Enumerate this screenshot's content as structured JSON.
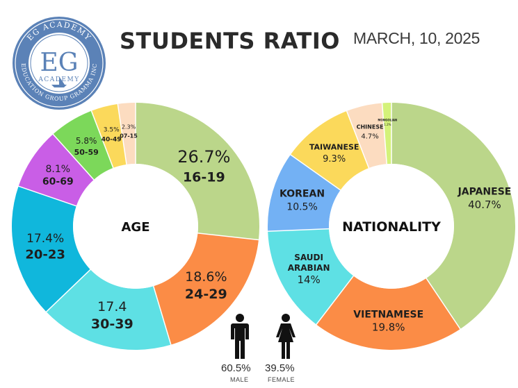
{
  "logo": {
    "top_arc": "EG ACADEMY",
    "monogram": "EG",
    "sub": "ACADEMY",
    "bottom_arc": "EDUCATION GROUP GRAMMA INC"
  },
  "header": {
    "title": "STUDENTS RATIO",
    "date": "MARCH, 10, 2025"
  },
  "chart_data": [
    {
      "type": "pie",
      "center_label": "AGE",
      "categories": [
        "16-19",
        "24-29",
        "30-39",
        "20-23",
        "60-69",
        "50-59",
        "40-49",
        "07-15"
      ],
      "value_labels": [
        "26.7%",
        "18.6%",
        "17.4",
        "17.4%",
        "8.1%",
        "5.8%",
        "3.5%",
        "2.3%"
      ],
      "values": [
        26.7,
        18.6,
        17.4,
        17.4,
        8.1,
        5.8,
        3.5,
        2.3
      ],
      "colors": [
        "#bbd68a",
        "#fb8c46",
        "#5ee0e4",
        "#10b7dc",
        "#c95ee6",
        "#7cd85a",
        "#fbd95b",
        "#fcdcc0"
      ]
    },
    {
      "type": "pie",
      "center_label": "NATIONALITY",
      "categories": [
        "JAPANESE",
        "VIETNAMESE",
        "SAUDI ARABIAN",
        "KOREAN",
        "TAIWANESE",
        "CHINESE",
        "MONGOLIAN"
      ],
      "value_labels": [
        "40.7%",
        "19.8%",
        "14%",
        "10.5%",
        "9.3%",
        "4.7%",
        "1.2%"
      ],
      "values": [
        40.7,
        19.8,
        14,
        10.5,
        9.3,
        4.7,
        1.2
      ],
      "colors": [
        "#bbd68a",
        "#fb8c46",
        "#5ee0e4",
        "#73b1f4",
        "#fbd95b",
        "#fcdcc0",
        "#d4f27a"
      ]
    }
  ],
  "gender": {
    "male": {
      "value": "60.5%",
      "label": "MALE"
    },
    "female": {
      "value": "39.5%",
      "label": "FEMALE"
    }
  }
}
